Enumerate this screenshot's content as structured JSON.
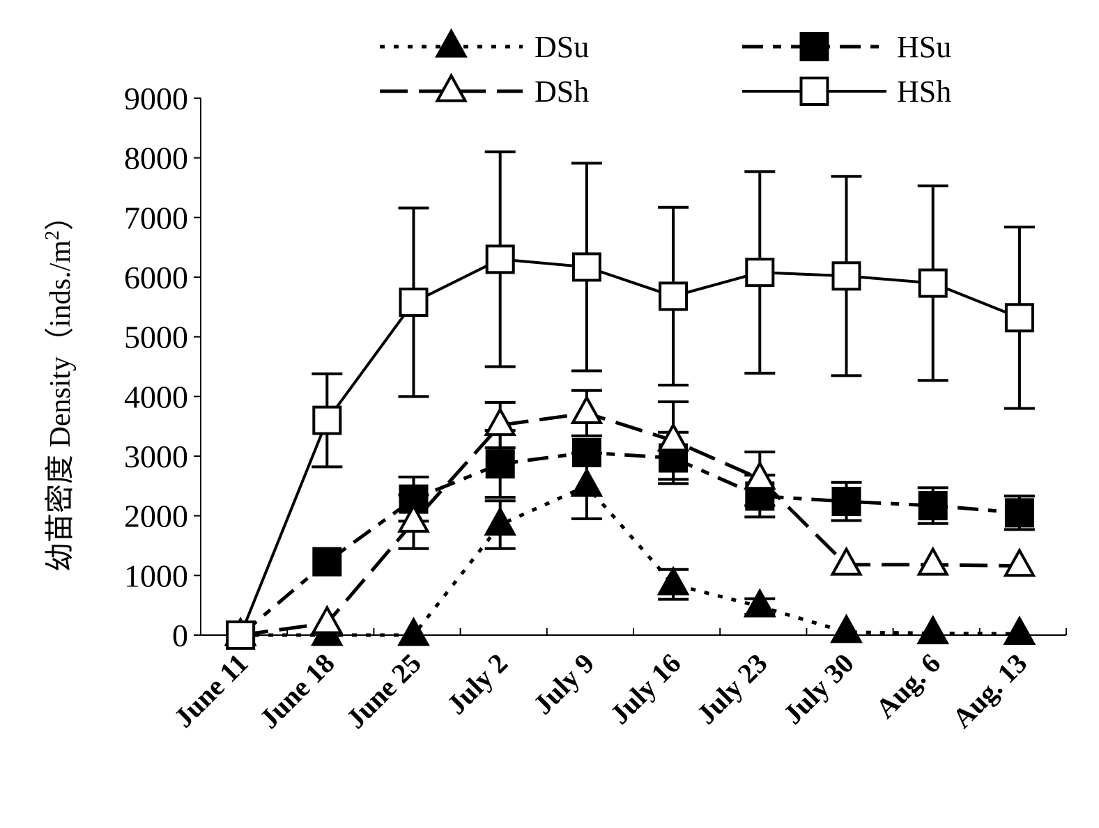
{
  "chart_data": {
    "type": "line",
    "ylabel": "幼苗密度 Density（inds./m",
    "ylabel_sup": "2",
    "ylabel_close": "）",
    "xlabel": "",
    "ylim": [
      0,
      9000
    ],
    "yticks": [
      "0",
      "1000",
      "2000",
      "3000",
      "4000",
      "5000",
      "6000",
      "7000",
      "8000",
      "9000"
    ],
    "categories": [
      "June 11",
      "June 18",
      "June 25",
      "July 2",
      "July 9",
      "July 16",
      "July 23",
      "July 30",
      "Aug. 6",
      "Aug. 13"
    ],
    "grid": false,
    "legend_position": "top",
    "series": [
      {
        "name": "DSu",
        "marker": "filled-triangle",
        "line": "dotted",
        "values": [
          0,
          0,
          0,
          1850,
          2500,
          850,
          480,
          50,
          30,
          20
        ],
        "error": [
          0,
          0,
          0,
          400,
          550,
          250,
          130,
          0,
          0,
          0
        ]
      },
      {
        "name": "HSu",
        "marker": "filled-square",
        "line": "dash-dot",
        "values": [
          0,
          1230,
          2280,
          2870,
          3060,
          2970,
          2330,
          2240,
          2170,
          2050
        ],
        "error": [
          0,
          0,
          370,
          560,
          0,
          430,
          350,
          320,
          300,
          280
        ]
      },
      {
        "name": "DSh",
        "marker": "open-triangle",
        "line": "long-dash",
        "values": [
          0,
          200,
          1900,
          3520,
          3720,
          3260,
          2620,
          1180,
          1180,
          1160
        ],
        "error": [
          0,
          0,
          450,
          380,
          380,
          650,
          450,
          0,
          0,
          0
        ]
      },
      {
        "name": "HSh",
        "marker": "open-square",
        "line": "solid",
        "values": [
          0,
          3600,
          5580,
          6300,
          6170,
          5680,
          6080,
          6020,
          5900,
          5320
        ],
        "error": [
          0,
          780,
          1580,
          1800,
          1740,
          1490,
          1690,
          1670,
          1630,
          1520
        ]
      }
    ]
  }
}
